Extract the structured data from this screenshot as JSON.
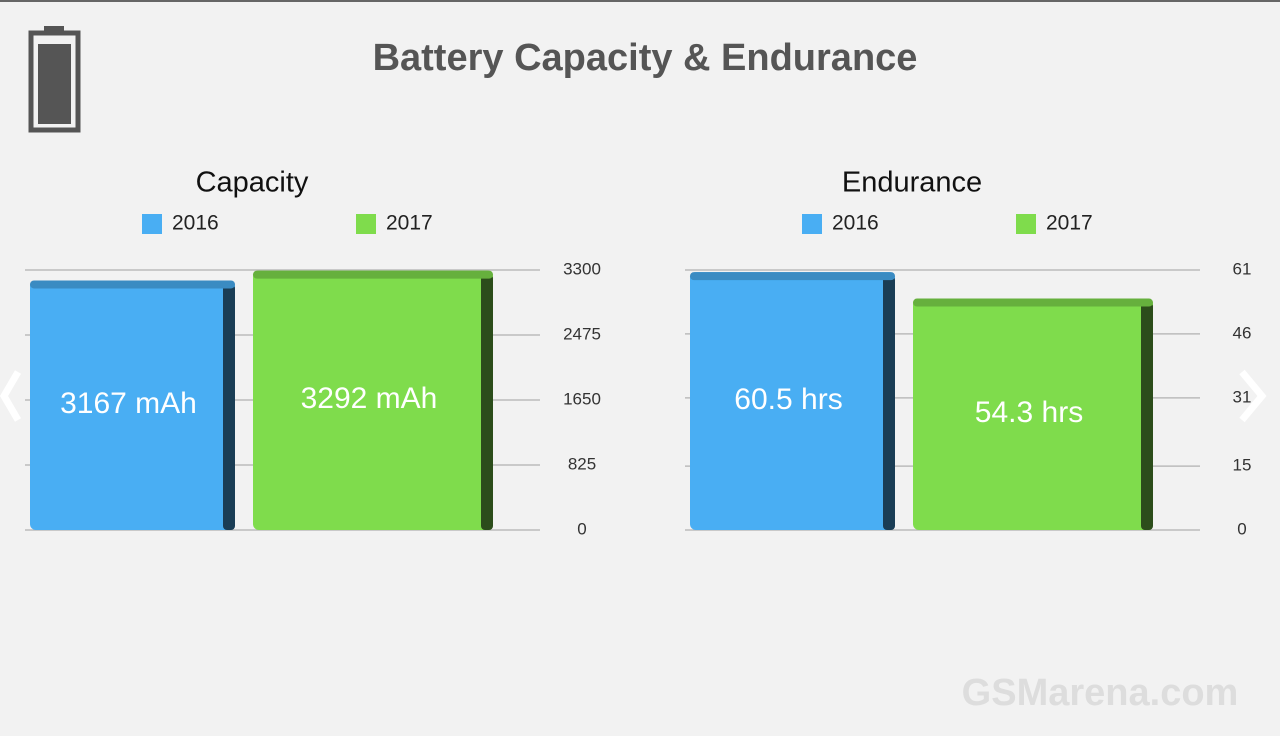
{
  "title": "Battery Capacity & Endurance",
  "watermark": "GSMarena.com",
  "chart_data": [
    {
      "type": "bar",
      "title": "Capacity",
      "series": [
        {
          "name": "2016",
          "color": "#49aef3",
          "values": [
            3167
          ],
          "value_labels": [
            "3167 mAh"
          ]
        },
        {
          "name": "2017",
          "color": "#7fdc4c",
          "values": [
            3292
          ],
          "value_labels": [
            "3292 mAh"
          ]
        }
      ],
      "ylim": [
        0,
        3300
      ],
      "yticks": [
        0,
        825,
        1650,
        2475,
        3300
      ],
      "grid": true
    },
    {
      "type": "bar",
      "title": "Endurance",
      "series": [
        {
          "name": "2016",
          "color": "#49aef3",
          "values": [
            60.5
          ],
          "value_labels": [
            "60.5 hrs"
          ]
        },
        {
          "name": "2017",
          "color": "#7fdc4c",
          "values": [
            54.3
          ],
          "value_labels": [
            "54.3 hrs"
          ]
        }
      ],
      "ylim": [
        0,
        61
      ],
      "yticks": [
        0,
        15,
        31,
        46,
        61
      ],
      "grid": true
    }
  ]
}
